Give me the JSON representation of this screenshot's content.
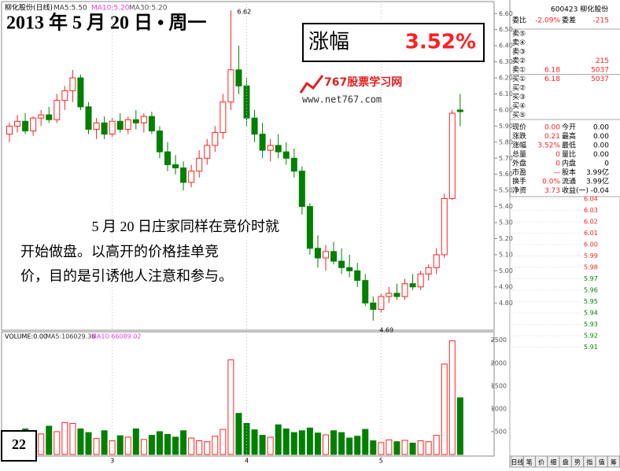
{
  "header": {
    "date": "2013 年 5 月 20 日 • 周一",
    "gain_label": "涨幅",
    "gain_value": "3.52%",
    "logo": "767股票学习网",
    "url": "www.net767.com",
    "note_lines": [
      "5 月 20 日庄家同样在竞价时就",
      "开始做盘。以高开的价格挂单竞",
      "价，目的是引诱他人注意和参与。"
    ],
    "page": "22"
  },
  "chart_data": [
    {
      "type": "candlestick",
      "title": "柳化股份(日线)",
      "ma_labels": [
        {
          "text": "MA5:5.50",
          "color": "#333333"
        },
        {
          "text": "MA10:5.20",
          "color": "#e040e0"
        },
        {
          "text": "MA30:5.20",
          "color": "#555555"
        }
      ],
      "open": [
        5.85,
        5.9,
        5.93,
        5.87,
        5.95,
        5.97,
        5.94,
        6.06,
        6.12,
        6.2,
        6.02,
        5.88,
        5.92,
        5.85,
        5.93,
        5.88,
        5.94,
        5.92,
        5.96,
        5.87,
        5.74,
        5.66,
        5.64,
        5.55,
        5.62,
        5.7,
        5.78,
        5.86,
        6.05,
        6.25,
        6.15,
        5.95,
        5.85,
        5.75,
        5.78,
        5.74,
        5.7,
        5.62,
        5.4,
        5.14,
        5.08,
        5.12,
        5.06,
        5.02,
        5.0,
        4.94,
        4.8,
        4.76,
        4.84,
        4.86,
        4.84,
        4.92,
        4.9,
        4.98,
        5.02,
        5.1,
        5.45,
        6.0
      ],
      "high": [
        5.92,
        5.97,
        5.98,
        5.96,
        6.0,
        6.02,
        6.1,
        6.15,
        6.25,
        6.22,
        6.05,
        5.95,
        5.96,
        5.95,
        5.98,
        5.96,
        6.0,
        5.98,
        5.99,
        5.9,
        5.8,
        5.72,
        5.68,
        5.66,
        5.75,
        5.82,
        5.9,
        6.1,
        6.62,
        6.4,
        6.2,
        6.0,
        5.92,
        5.82,
        5.85,
        5.8,
        5.76,
        5.65,
        5.42,
        5.22,
        5.16,
        5.18,
        5.14,
        5.1,
        5.05,
        4.98,
        4.84,
        4.86,
        4.9,
        4.92,
        4.95,
        4.98,
        5.0,
        5.04,
        5.14,
        5.48,
        6.0,
        6.1
      ],
      "low": [
        5.8,
        5.86,
        5.85,
        5.84,
        5.9,
        5.92,
        5.92,
        6.0,
        6.05,
        6.0,
        5.85,
        5.82,
        5.82,
        5.83,
        5.86,
        5.85,
        5.88,
        5.86,
        5.85,
        5.7,
        5.62,
        5.6,
        5.5,
        5.52,
        5.58,
        5.66,
        5.74,
        5.82,
        6.0,
        6.1,
        5.9,
        5.8,
        5.7,
        5.68,
        5.7,
        5.66,
        5.58,
        5.35,
        5.1,
        5.02,
        5.0,
        5.04,
        4.98,
        4.96,
        4.9,
        4.78,
        4.69,
        4.74,
        4.8,
        4.82,
        4.82,
        4.88,
        4.88,
        4.94,
        4.98,
        5.08,
        5.44,
        5.9
      ],
      "close": [
        5.9,
        5.93,
        5.87,
        5.95,
        5.97,
        5.94,
        6.06,
        6.12,
        6.2,
        6.02,
        5.88,
        5.92,
        5.85,
        5.93,
        5.88,
        5.94,
        5.92,
        5.96,
        5.87,
        5.74,
        5.66,
        5.64,
        5.55,
        5.62,
        5.7,
        5.78,
        5.86,
        6.05,
        6.25,
        6.15,
        5.95,
        5.85,
        5.75,
        5.78,
        5.74,
        5.7,
        5.62,
        5.4,
        5.14,
        5.08,
        5.12,
        5.06,
        5.02,
        5.0,
        4.94,
        4.8,
        4.76,
        4.84,
        4.86,
        4.84,
        4.92,
        4.9,
        4.98,
        5.02,
        5.1,
        5.45,
        5.98,
        5.99
      ],
      "up_color": "#ff2020",
      "down_color": "#008000",
      "annotations": [
        6.62,
        4.69
      ],
      "ylim": [
        4.64,
        6.66
      ],
      "yticks": [
        {
          "value": 4.8,
          "label": "4.80"
        },
        {
          "value": 4.9,
          "label": "4.90"
        },
        {
          "value": 5,
          "label": "5.00"
        },
        {
          "value": 5.1,
          "label": "5.10"
        },
        {
          "value": 5.2,
          "label": "5.20"
        },
        {
          "value": 5.3,
          "label": "5.30"
        },
        {
          "value": 5.4,
          "label": "5.40"
        },
        {
          "value": 5.5,
          "label": "5.50"
        },
        {
          "value": 5.6,
          "label": "5.60"
        },
        {
          "value": 5.7,
          "label": "5.70"
        },
        {
          "value": 5.8,
          "label": "5.80"
        },
        {
          "value": 5.9,
          "label": "5.90"
        },
        {
          "value": 6,
          "label": "6.00"
        },
        {
          "value": 6.1,
          "label": "6.10"
        },
        {
          "value": 6.2,
          "label": "6.20"
        },
        {
          "value": 6.3,
          "label": "6.30"
        },
        {
          "value": 6.4,
          "label": "6.40"
        },
        {
          "value": 6.5,
          "label": "6.50"
        },
        {
          "value": 6.6,
          "label": "6.60"
        }
      ]
    },
    {
      "type": "bar",
      "title": "VOLUME:0.00",
      "ma_labels": [
        {
          "text": "MA5:106029.36",
          "color": "#333333"
        },
        {
          "text": "MA10:66089.02",
          "color": "#e040e0"
        }
      ],
      "categories": [
        null,
        null,
        null,
        null,
        null,
        null,
        null,
        null,
        null,
        null,
        null,
        null,
        null,
        "3",
        null,
        null,
        null,
        null,
        null,
        null,
        null,
        null,
        null,
        null,
        null,
        null,
        null,
        null,
        null,
        null,
        "4",
        null,
        null,
        null,
        null,
        null,
        null,
        null,
        null,
        null,
        null,
        null,
        null,
        null,
        null,
        null,
        null,
        "5",
        null,
        null,
        null,
        null,
        null,
        null,
        null,
        null,
        null,
        null
      ],
      "values": [
        420,
        380,
        560,
        300,
        450,
        620,
        500,
        700,
        680,
        560,
        480,
        350,
        520,
        300,
        410,
        380,
        560,
        330,
        420,
        500,
        440,
        380,
        520,
        360,
        300,
        280,
        400,
        550,
        2070,
        900,
        680,
        540,
        420,
        380,
        650,
        560,
        480,
        520,
        580,
        470,
        430,
        520,
        480,
        360,
        400,
        550,
        300,
        260,
        320,
        280,
        310,
        250,
        300,
        280,
        420,
        1980,
        2490,
        1240
      ],
      "ylim": [
        0,
        2650
      ],
      "yticks": [
        500,
        1000,
        1500,
        2000,
        2500
      ]
    }
  ],
  "panel": {
    "header": "600423 柳化股份",
    "book": [
      {
        "label": "委比",
        "price": "-2.09%",
        "extra": "委差",
        "volume": "-215"
      },
      {
        "label": "卖⑤"
      },
      {
        "label": "卖④"
      },
      {
        "label": "卖③"
      },
      {
        "label": "卖②",
        "volume": "215"
      },
      {
        "label": "卖①",
        "price": "6.18",
        "volume": "5037"
      },
      {
        "label": "买①",
        "price": "6.18",
        "volume": "5037"
      },
      {
        "label": "买②"
      },
      {
        "label": "买③"
      },
      {
        "label": "买④"
      },
      {
        "label": "买⑤"
      }
    ],
    "stats": [
      [
        "现价",
        "0.00",
        "今开",
        "0.00"
      ],
      [
        "涨跌",
        "0.21",
        "最高",
        "0.00"
      ],
      [
        "涨幅",
        "3.52%",
        "最低",
        "0.00"
      ],
      [
        "总量",
        "0",
        "量比",
        "0.00"
      ],
      [
        "外盘",
        "0",
        "内盘",
        "0"
      ],
      [
        "市盈",
        "—",
        "股本",
        "3.99亿"
      ],
      [
        "换手",
        "0.0%",
        "流通",
        "3.99亿"
      ],
      [
        "净资",
        "3.73",
        "收益(一)",
        "-0.04"
      ]
    ],
    "intraday_labels": [
      "6.04",
      "6.03",
      "6.02",
      "6.01",
      "6.00",
      "5.99",
      "5.98",
      "5.97",
      "5.96",
      "5.95",
      "5.94",
      "5.93",
      "5.92",
      "5.91"
    ],
    "tabs": [
      "日线",
      "笔",
      "价",
      "细",
      "盘",
      "势",
      "指",
      "值",
      "筹"
    ]
  }
}
